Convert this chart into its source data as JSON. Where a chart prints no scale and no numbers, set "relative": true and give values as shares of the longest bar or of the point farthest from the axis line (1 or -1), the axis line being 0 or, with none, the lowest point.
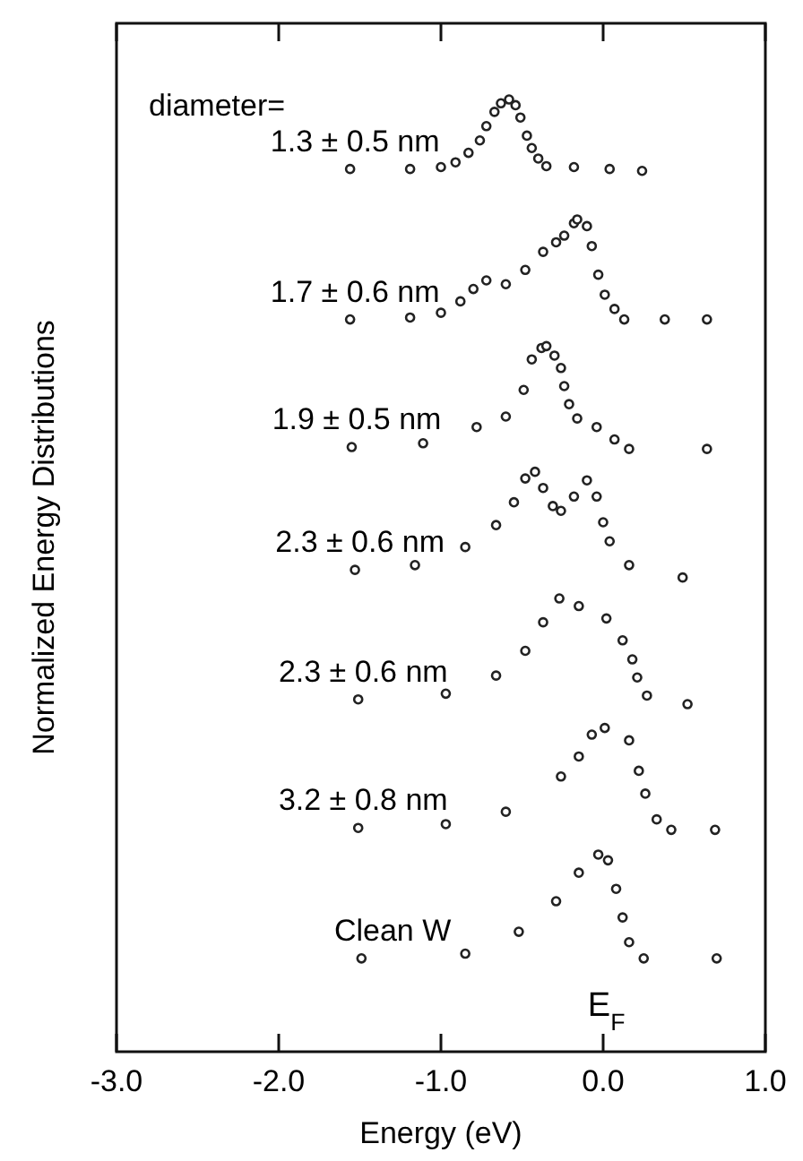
{
  "chart_data": {
    "type": "scatter",
    "relative": true,
    "xlabel": "Energy (eV)",
    "ylabel": "Normalized Energy Distributions",
    "legend_title": "diameter=",
    "marker": "circle",
    "grid": false,
    "tick_labels": "x",
    "xlim": [
      -3,
      1
    ],
    "xticks": [
      {
        "value": -3,
        "label": "-3.0"
      },
      {
        "value": -2,
        "label": "-2.0"
      },
      {
        "value": -1,
        "label": "-1.0"
      },
      {
        "value": 0,
        "label": "0.0"
      },
      {
        "value": 1,
        "label": "1.0"
      }
    ],
    "annotations": [
      "E$_{F}$"
    ],
    "series": [
      {
        "name": "1.3 ± 0.5 nm",
        "color": "#222222",
        "x": [
          -1.56,
          -1.19,
          -1.0,
          -0.91,
          -0.83,
          -0.76,
          -0.72,
          -0.67,
          -0.63,
          -0.58,
          -0.54,
          -0.51,
          -0.47,
          -0.44,
          -0.4,
          -0.35,
          -0.18,
          0.04,
          0.24
        ],
        "values": [
          0.927,
          0.927,
          0.929,
          0.934,
          0.944,
          0.957,
          0.972,
          0.987,
          0.996,
          1.0,
          0.994,
          0.981,
          0.962,
          0.949,
          0.938,
          0.93,
          0.929,
          0.927,
          0.925
        ]
      },
      {
        "name": "1.7 ± 0.6 nm",
        "color": "#222222",
        "x": [
          -1.56,
          -1.19,
          -1.0,
          -0.88,
          -0.8,
          -0.72,
          -0.6,
          -0.48,
          -0.37,
          -0.29,
          -0.24,
          -0.18,
          -0.16,
          -0.1,
          -0.07,
          -0.03,
          0.01,
          0.07,
          0.13,
          0.38,
          0.64
        ],
        "values": [
          0.769,
          0.771,
          0.776,
          0.788,
          0.801,
          0.81,
          0.806,
          0.821,
          0.84,
          0.85,
          0.857,
          0.87,
          0.874,
          0.867,
          0.846,
          0.816,
          0.795,
          0.78,
          0.769,
          0.769,
          0.769
        ]
      },
      {
        "name": "1.9 ± 0.5 nm",
        "color": "#222222",
        "x": [
          -1.55,
          -1.11,
          -0.78,
          -0.6,
          -0.49,
          -0.44,
          -0.38,
          -0.35,
          -0.3,
          -0.26,
          -0.24,
          -0.21,
          -0.16,
          -0.04,
          0.07,
          0.16,
          0.64
        ],
        "values": [
          0.635,
          0.639,
          0.656,
          0.667,
          0.695,
          0.727,
          0.739,
          0.741,
          0.731,
          0.718,
          0.699,
          0.68,
          0.665,
          0.656,
          0.643,
          0.633,
          0.633
        ]
      },
      {
        "name": "2.3 ± 0.6 nm",
        "color": "#222222",
        "x": [
          -1.53,
          -1.16,
          -0.85,
          -0.66,
          -0.55,
          -0.48,
          -0.42,
          -0.37,
          -0.31,
          -0.26,
          -0.18,
          -0.1,
          -0.04,
          0.0,
          0.04,
          0.16,
          0.49
        ],
        "values": [
          0.506,
          0.511,
          0.53,
          0.553,
          0.577,
          0.602,
          0.609,
          0.592,
          0.573,
          0.568,
          0.583,
          0.6,
          0.583,
          0.556,
          0.536,
          0.511,
          0.498
        ]
      },
      {
        "name": "2.3 ± 0.6 nm",
        "color": "#222222",
        "x": [
          -1.51,
          -0.97,
          -0.66,
          -0.48,
          -0.37,
          -0.27,
          -0.15,
          0.02,
          0.12,
          0.18,
          0.21,
          0.27,
          0.52
        ],
        "values": [
          0.37,
          0.376,
          0.395,
          0.421,
          0.451,
          0.476,
          0.468,
          0.455,
          0.432,
          0.412,
          0.393,
          0.374,
          0.365
        ]
      },
      {
        "name": "3.2 ± 0.8 nm",
        "color": "#222222",
        "x": [
          -1.51,
          -0.97,
          -0.6,
          -0.26,
          -0.15,
          -0.07,
          0.01,
          0.16,
          0.22,
          0.26,
          0.33,
          0.42,
          0.69
        ],
        "values": [
          0.235,
          0.239,
          0.252,
          0.289,
          0.31,
          0.333,
          0.34,
          0.327,
          0.295,
          0.271,
          0.244,
          0.233,
          0.233
        ]
      },
      {
        "name": "Clean W",
        "color": "#222222",
        "x": [
          -1.49,
          -0.85,
          -0.52,
          -0.29,
          -0.15,
          -0.03,
          0.03,
          0.08,
          0.12,
          0.16,
          0.25,
          0.7
        ],
        "values": [
          0.098,
          0.103,
          0.126,
          0.158,
          0.188,
          0.207,
          0.201,
          0.171,
          0.141,
          0.115,
          0.098,
          0.098
        ]
      }
    ]
  }
}
